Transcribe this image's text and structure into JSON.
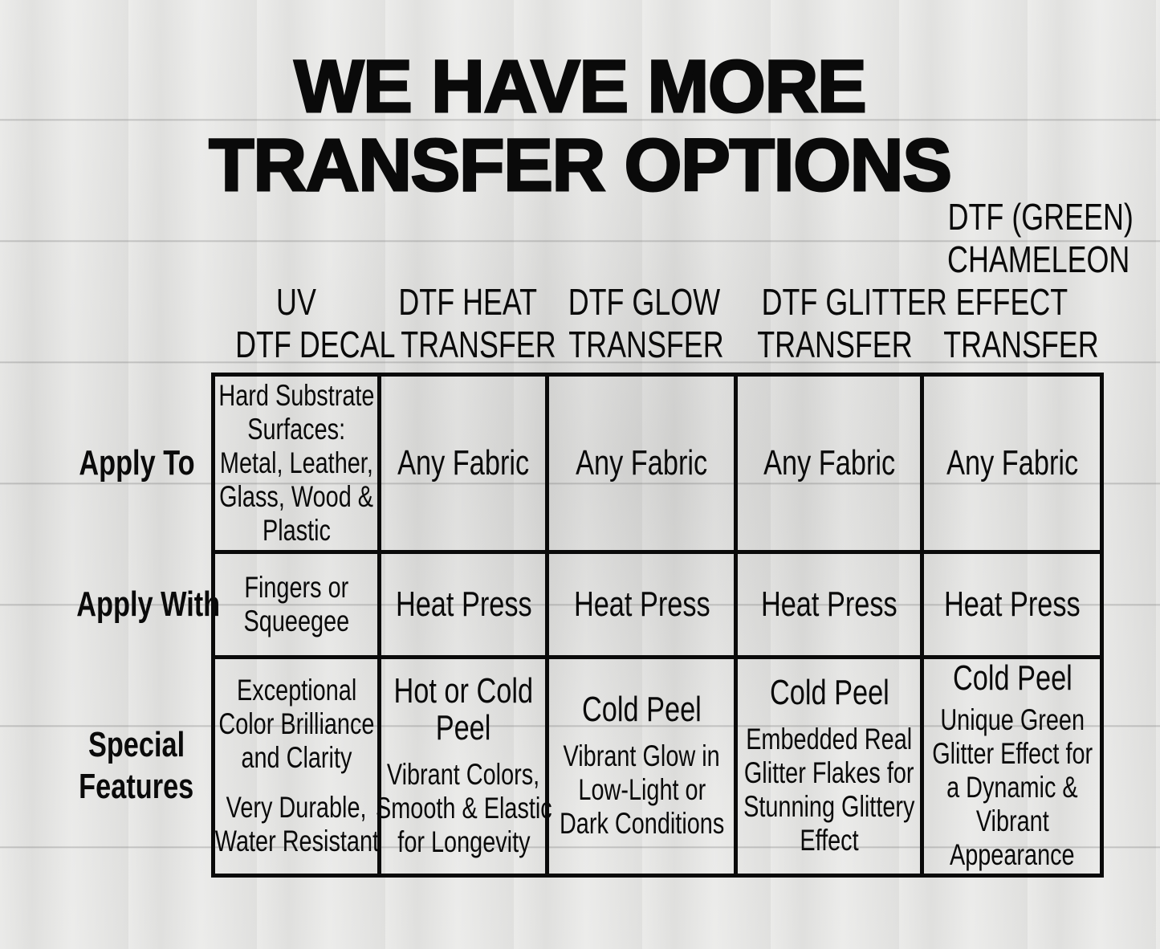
{
  "title": {
    "line1": "WE HAVE MORE",
    "line2": "TRANSFER OPTIONS"
  },
  "columns": [
    {
      "header": [
        "UV",
        "DTF DECAL"
      ]
    },
    {
      "header": [
        "DTF HEAT",
        "TRANSFER"
      ]
    },
    {
      "header": [
        "DTF GLOW",
        "TRANSFER"
      ]
    },
    {
      "header": [
        "DTF GLITTER",
        "TRANSFER"
      ]
    },
    {
      "header": [
        "DTF  (GREEN)",
        "CHAMELEON",
        "EFFECT",
        "TRANSFER"
      ]
    }
  ],
  "rows": [
    {
      "label": [
        "Apply To"
      ],
      "cells": [
        [
          "Hard Substrate",
          "Surfaces:",
          "Metal, Leather,",
          "Glass, Wood &",
          "Plastic"
        ],
        [
          "Any Fabric"
        ],
        [
          "Any Fabric"
        ],
        [
          "Any Fabric"
        ],
        [
          "Any Fabric"
        ]
      ]
    },
    {
      "label": [
        "Apply With"
      ],
      "cells": [
        [
          "Fingers or",
          "Squeegee"
        ],
        [
          "Heat Press"
        ],
        [
          "Heat Press"
        ],
        [
          "Heat Press"
        ],
        [
          "Heat Press"
        ]
      ]
    },
    {
      "label": [
        "Special",
        "Features"
      ],
      "cells": [
        {
          "lead": [],
          "body": [
            "Exceptional",
            "Color Brilliance",
            "and Clarity",
            "",
            "Very Durable,",
            "Water Resistant"
          ]
        },
        {
          "lead": [
            "Hot or Cold",
            "Peel"
          ],
          "body": [
            "Vibrant Colors,",
            "Smooth & Elastic",
            "for Longevity"
          ]
        },
        {
          "lead": [
            "Cold Peel"
          ],
          "body": [
            "Vibrant Glow in",
            "Low-Light or",
            "Dark Conditions"
          ]
        },
        {
          "lead": [
            "Cold Peel"
          ],
          "body": [
            "Embedded Real",
            "Glitter Flakes for",
            "Stunning Glittery",
            "Effect"
          ]
        },
        {
          "lead": [
            "Cold Peel"
          ],
          "body": [
            "Unique Green",
            "Glitter Effect for",
            "a Dynamic &",
            "Vibrant",
            "Appearance"
          ]
        }
      ]
    }
  ]
}
